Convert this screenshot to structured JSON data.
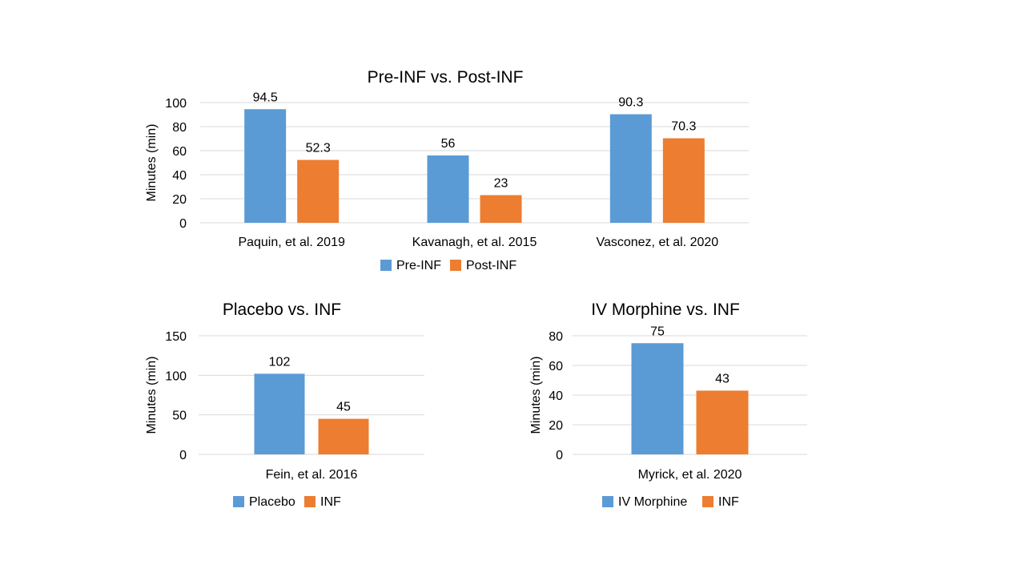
{
  "colors": {
    "series_1": "#5b9bd5",
    "series_2": "#ed7d31",
    "gridline": "#d9d9d9",
    "text": "#000000",
    "background": "#ffffff"
  },
  "chart_data": [
    {
      "type": "bar",
      "title": "Pre-INF vs. Post-INF",
      "xlabel": "",
      "ylabel": "Minutes (min)",
      "ylim": [
        0,
        100
      ],
      "yticks": [
        "0",
        "20",
        "40",
        "60",
        "80",
        "100"
      ],
      "categories": [
        "Paquin, et al. 2019",
        "Kavanagh, et al. 2015",
        "Vasconez, et al. 2020"
      ],
      "series": [
        {
          "name": "Pre-INF",
          "values": [
            94.5,
            56,
            90.3
          ],
          "labels": [
            "94.5",
            "56",
            "90.3"
          ]
        },
        {
          "name": "Post-INF",
          "values": [
            52.3,
            23,
            70.3
          ],
          "labels": [
            "52.3",
            "23",
            "70.3"
          ]
        }
      ],
      "grid": true,
      "legend": "bottom"
    },
    {
      "type": "bar",
      "title": "Placebo vs. INF",
      "xlabel": "",
      "ylabel": "Minutes (min)",
      "ylim": [
        0,
        150
      ],
      "yticks": [
        "0",
        "50",
        "100",
        "150"
      ],
      "categories": [
        "Fein, et al. 2016"
      ],
      "series": [
        {
          "name": "Placebo",
          "values": [
            102
          ],
          "labels": [
            "102"
          ]
        },
        {
          "name": "INF",
          "values": [
            45
          ],
          "labels": [
            "45"
          ]
        }
      ],
      "grid": true,
      "legend": "bottom"
    },
    {
      "type": "bar",
      "title": "IV Morphine vs. INF",
      "xlabel": "",
      "ylabel": "Minutes (min)",
      "ylim": [
        0,
        80
      ],
      "yticks": [
        "0",
        "20",
        "40",
        "60",
        "80"
      ],
      "categories": [
        "Myrick, et al. 2020"
      ],
      "series": [
        {
          "name": "IV Morphine",
          "values": [
            75
          ],
          "labels": [
            "75"
          ]
        },
        {
          "name": "INF",
          "values": [
            43
          ],
          "labels": [
            "43"
          ]
        }
      ],
      "grid": true,
      "legend": "bottom"
    }
  ]
}
